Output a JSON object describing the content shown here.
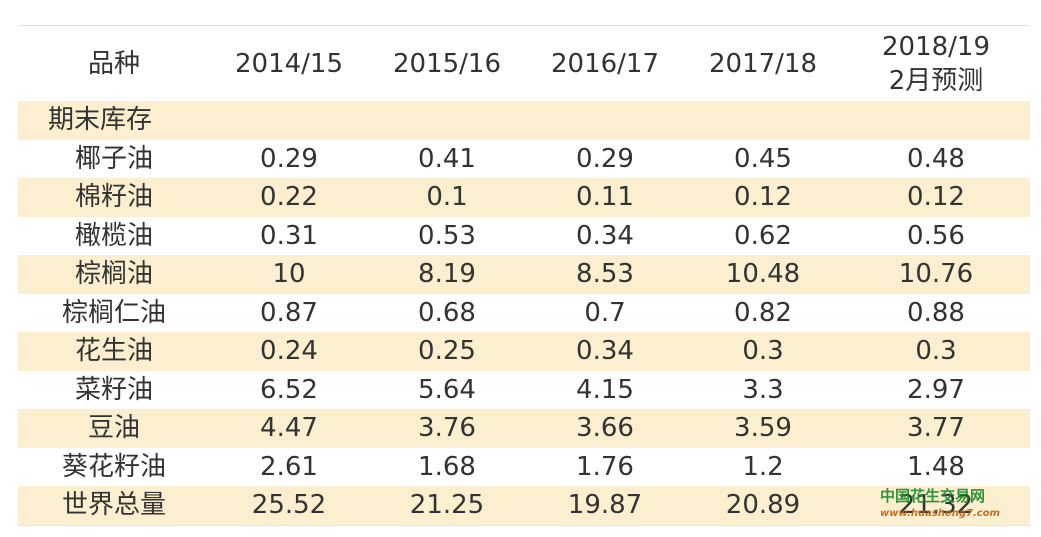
{
  "table": {
    "header": [
      "品种",
      "2014/15",
      "2015/16",
      "2016/17",
      "2017/18",
      "2018/19\n2月预测"
    ],
    "section": "期末库存",
    "rows": [
      [
        "椰子油",
        "0.29",
        "0.41",
        "0.29",
        "0.45",
        "0.48"
      ],
      [
        "棉籽油",
        "0.22",
        "0.1",
        "0.11",
        "0.12",
        "0.12"
      ],
      [
        "橄榄油",
        "0.31",
        "0.53",
        "0.34",
        "0.62",
        "0.56"
      ],
      [
        "棕榈油",
        "10",
        "8.19",
        "8.53",
        "10.48",
        "10.76"
      ],
      [
        "棕榈仁油",
        "0.87",
        "0.68",
        "0.7",
        "0.82",
        "0.88"
      ],
      [
        "花生油",
        "0.24",
        "0.25",
        "0.34",
        "0.3",
        "0.3"
      ],
      [
        "菜籽油",
        "6.52",
        "5.64",
        "4.15",
        "3.3",
        "2.97"
      ],
      [
        "豆油",
        "4.47",
        "3.76",
        "3.66",
        "3.59",
        "3.77"
      ],
      [
        "葵花籽油",
        "2.61",
        "1.68",
        "1.76",
        "1.2",
        "1.48"
      ],
      [
        "世界总量",
        "25.52",
        "21.25",
        "19.87",
        "20.89",
        "21.32"
      ]
    ]
  },
  "watermark": {
    "name": "中国花生交易网",
    "url": "www.huasheng7.com"
  }
}
